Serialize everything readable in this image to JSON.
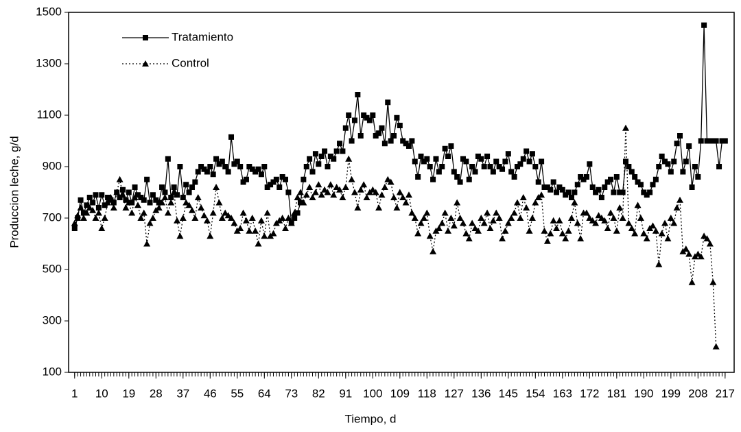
{
  "chart_data": {
    "type": "line",
    "xlabel": "Tiempo, d",
    "ylabel": "Produccion leche, g/d",
    "xlim": [
      -1,
      220
    ],
    "ylim": [
      100,
      1500
    ],
    "yticks": [
      100,
      300,
      500,
      700,
      900,
      1100,
      1300,
      1500
    ],
    "xticks": [
      1,
      10,
      19,
      28,
      37,
      46,
      55,
      64,
      73,
      82,
      91,
      100,
      109,
      118,
      127,
      136,
      145,
      154,
      163,
      172,
      181,
      190,
      199,
      208,
      217
    ],
    "legend": "upper left",
    "x": [
      1,
      2,
      3,
      4,
      5,
      6,
      7,
      8,
      9,
      10,
      11,
      12,
      13,
      14,
      15,
      16,
      17,
      18,
      19,
      20,
      21,
      22,
      23,
      24,
      25,
      26,
      27,
      28,
      29,
      30,
      31,
      32,
      33,
      34,
      35,
      36,
      37,
      38,
      39,
      40,
      41,
      42,
      43,
      44,
      45,
      46,
      47,
      48,
      49,
      50,
      51,
      52,
      53,
      54,
      55,
      56,
      57,
      58,
      59,
      60,
      61,
      62,
      63,
      64,
      65,
      66,
      67,
      68,
      69,
      70,
      71,
      72,
      73,
      74,
      75,
      76,
      77,
      78,
      79,
      80,
      81,
      82,
      83,
      84,
      85,
      86,
      87,
      88,
      89,
      90,
      91,
      92,
      93,
      94,
      95,
      96,
      97,
      98,
      99,
      100,
      101,
      102,
      103,
      104,
      105,
      106,
      107,
      108,
      109,
      110,
      111,
      112,
      113,
      114,
      115,
      116,
      117,
      118,
      119,
      120,
      121,
      122,
      123,
      124,
      125,
      126,
      127,
      128,
      129,
      130,
      131,
      132,
      133,
      134,
      135,
      136,
      137,
      138,
      139,
      140,
      141,
      142,
      143,
      144,
      145,
      146,
      147,
      148,
      149,
      150,
      151,
      152,
      153,
      154,
      155,
      156,
      157,
      158,
      159,
      160,
      161,
      162,
      163,
      164,
      165,
      166,
      167,
      168,
      169,
      170,
      171,
      172,
      173,
      174,
      175,
      176,
      177,
      178,
      179,
      180,
      181,
      182,
      183,
      184,
      185,
      186,
      187,
      188,
      189,
      190,
      191,
      192,
      193,
      194,
      195,
      196,
      197,
      198,
      199,
      200,
      201,
      202,
      203,
      204,
      205,
      206,
      207,
      208,
      209,
      210,
      211,
      212,
      213,
      214,
      215,
      216,
      217
    ],
    "series": [
      {
        "name": "Tratamiento",
        "color": "#000000",
        "line_style": "solid",
        "marker": "square",
        "values": [
          660,
          700,
          770,
          720,
          750,
          780,
          760,
          790,
          740,
          790,
          750,
          780,
          770,
          760,
          800,
          780,
          810,
          770,
          800,
          760,
          820,
          790,
          780,
          770,
          850,
          760,
          790,
          770,
          760,
          820,
          800,
          930,
          780,
          820,
          790,
          900,
          780,
          830,
          800,
          820,
          840,
          880,
          900,
          890,
          880,
          900,
          870,
          930,
          910,
          920,
          900,
          880,
          1015,
          910,
          920,
          900,
          840,
          850,
          900,
          890,
          880,
          890,
          870,
          900,
          820,
          830,
          840,
          850,
          820,
          860,
          850,
          800,
          680,
          700,
          720,
          760,
          850,
          900,
          930,
          880,
          950,
          910,
          940,
          960,
          900,
          940,
          930,
          960,
          990,
          960,
          1050,
          1100,
          1000,
          1080,
          1180,
          1020,
          1100,
          1090,
          1080,
          1100,
          1020,
          1030,
          1050,
          990,
          1150,
          1000,
          1020,
          1090,
          1060,
          1000,
          990,
          980,
          1000,
          920,
          860,
          940,
          920,
          930,
          900,
          850,
          930,
          880,
          900,
          970,
          940,
          980,
          880,
          860,
          840,
          930,
          920,
          850,
          900,
          880,
          940,
          930,
          900,
          940,
          900,
          880,
          920,
          900,
          890,
          920,
          950,
          880,
          860,
          900,
          910,
          930,
          960,
          920,
          950,
          900,
          840,
          920,
          820,
          820,
          810,
          840,
          800,
          820,
          810,
          790,
          800,
          780,
          800,
          830,
          860,
          850,
          860,
          910,
          820,
          800,
          810,
          780,
          820,
          840,
          850,
          800,
          860,
          800,
          800,
          920,
          900,
          880,
          860,
          840,
          830,
          800,
          790,
          800,
          830,
          850,
          900,
          940,
          920,
          910,
          880,
          920,
          990,
          1020,
          880,
          920,
          980,
          820,
          900,
          860,
          1000,
          1450,
          1000,
          1000,
          1000,
          1000,
          900,
          1000,
          1000
        ]
      },
      {
        "name": "Control",
        "color": "#000000",
        "line_style": "dotted",
        "marker": "triangle",
        "values": [
          680,
          710,
          740,
          700,
          720,
          740,
          730,
          700,
          720,
          660,
          700,
          760,
          780,
          740,
          800,
          850,
          790,
          740,
          760,
          720,
          780,
          750,
          700,
          720,
          600,
          680,
          700,
          730,
          740,
          760,
          780,
          720,
          760,
          800,
          690,
          630,
          700,
          760,
          750,
          730,
          700,
          780,
          740,
          710,
          690,
          630,
          720,
          820,
          760,
          700,
          720,
          710,
          700,
          680,
          650,
          660,
          720,
          690,
          650,
          700,
          650,
          600,
          690,
          630,
          720,
          630,
          640,
          680,
          690,
          700,
          660,
          700,
          680,
          720,
          780,
          800,
          760,
          790,
          820,
          780,
          800,
          830,
          790,
          810,
          800,
          830,
          790,
          820,
          810,
          780,
          820,
          930,
          850,
          800,
          740,
          810,
          830,
          780,
          800,
          810,
          800,
          740,
          790,
          820,
          850,
          840,
          780,
          740,
          800,
          780,
          760,
          790,
          720,
          700,
          640,
          680,
          700,
          720,
          630,
          570,
          650,
          660,
          680,
          720,
          650,
          700,
          670,
          760,
          700,
          680,
          640,
          620,
          680,
          660,
          650,
          700,
          680,
          720,
          660,
          690,
          720,
          700,
          620,
          650,
          680,
          700,
          720,
          760,
          700,
          780,
          740,
          650,
          700,
          760,
          780,
          790,
          650,
          610,
          640,
          690,
          660,
          690,
          640,
          620,
          650,
          700,
          760,
          680,
          620,
          720,
          720,
          700,
          690,
          680,
          710,
          700,
          690,
          660,
          720,
          700,
          650,
          740,
          700,
          1050,
          680,
          660,
          640,
          750,
          700,
          640,
          620,
          660,
          670,
          650,
          520,
          640,
          680,
          620,
          700,
          680,
          740,
          770,
          570,
          580,
          560,
          450,
          550,
          560,
          550,
          630,
          620,
          600,
          450,
          200,
          null,
          null,
          null
        ]
      }
    ]
  }
}
